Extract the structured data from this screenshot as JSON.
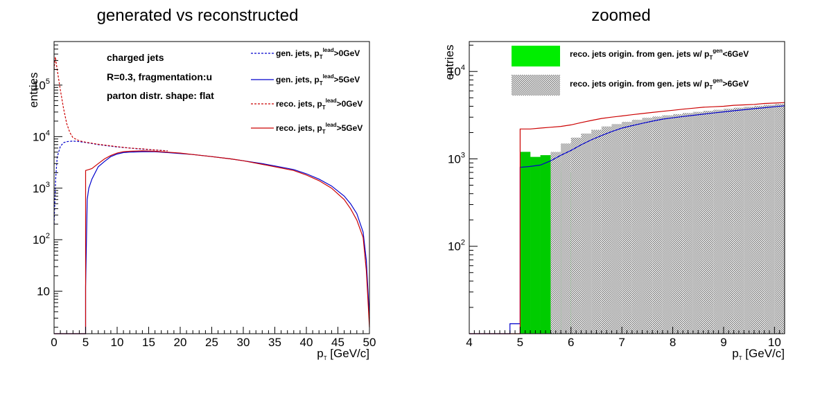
{
  "chart_data": [
    {
      "type": "line",
      "title": "generated vs reconstructed",
      "xlabel": "p_T [GeV/c]",
      "ylabel": "entries",
      "xlim": [
        0,
        50
      ],
      "ylim": [
        1.5,
        700000
      ],
      "yscale": "log",
      "grid": false,
      "legend_position": "top-right",
      "xticks": [
        "0",
        "5",
        "10",
        "15",
        "20",
        "25",
        "30",
        "35",
        "40",
        "45",
        "50"
      ],
      "yticks": [
        "10",
        "10^2",
        "10^3",
        "10^4",
        "10^5"
      ],
      "annotations": [
        "charged jets",
        "R=0.3, fragmentation:u",
        "parton distr. shape: flat"
      ],
      "series": [
        {
          "name": "gen. jets, p_T^lead>0GeV",
          "color": "#0000cc",
          "dash": true,
          "points": [
            [
              0,
              200
            ],
            [
              0.25,
              1500
            ],
            [
              0.5,
              4000
            ],
            [
              1,
              6500
            ],
            [
              1.5,
              7600
            ],
            [
              2,
              8000
            ],
            [
              3,
              8200
            ],
            [
              4,
              8000
            ],
            [
              5,
              7700
            ],
            [
              7,
              7000
            ],
            [
              10,
              6300
            ],
            [
              12,
              6000
            ],
            [
              14,
              5700
            ],
            [
              16,
              5500
            ],
            [
              18,
              5300
            ]
          ]
        },
        {
          "name": "gen. jets, p_T^lead>5GeV",
          "color": "#0000cc",
          "dash": false,
          "points": [
            [
              0,
              1.5
            ],
            [
              5,
              1.5
            ],
            [
              5,
              12
            ],
            [
              5.25,
              600
            ],
            [
              5.5,
              1000
            ],
            [
              6,
              1500
            ],
            [
              7,
              2600
            ],
            [
              8,
              3300
            ],
            [
              9,
              4100
            ],
            [
              10,
              4600
            ],
            [
              11,
              4900
            ],
            [
              12,
              5000
            ],
            [
              14,
              5100
            ],
            [
              16,
              5100
            ],
            [
              18,
              4900
            ],
            [
              20,
              4700
            ],
            [
              22,
              4500
            ],
            [
              25,
              4100
            ],
            [
              28,
              3700
            ],
            [
              30,
              3400
            ],
            [
              33,
              3000
            ],
            [
              35,
              2700
            ],
            [
              38,
              2300
            ],
            [
              40,
              1900
            ],
            [
              42,
              1500
            ],
            [
              44,
              1100
            ],
            [
              46,
              700
            ],
            [
              47,
              500
            ],
            [
              48,
              320
            ],
            [
              49,
              140
            ],
            [
              49.5,
              40
            ],
            [
              50,
              3
            ]
          ]
        },
        {
          "name": "reco. jets, p_T^lead>0GeV",
          "color": "#cc0000",
          "dash": true,
          "points": [
            [
              0,
              200000
            ],
            [
              0.2,
              350000
            ],
            [
              0.5,
              200000
            ],
            [
              1,
              80000
            ],
            [
              1.5,
              35000
            ],
            [
              2,
              18000
            ],
            [
              2.5,
              12000
            ],
            [
              3,
              9500
            ],
            [
              4,
              8300
            ],
            [
              5,
              7800
            ],
            [
              7,
              7100
            ],
            [
              10,
              6400
            ],
            [
              12,
              6000
            ],
            [
              14,
              5800
            ],
            [
              16,
              5500
            ],
            [
              18,
              5300
            ]
          ]
        },
        {
          "name": "reco. jets, p_T^lead>5GeV",
          "color": "#cc0000",
          "dash": false,
          "points": [
            [
              0,
              1.5
            ],
            [
              5,
              1.5
            ],
            [
              5,
              2200
            ],
            [
              5.5,
              2300
            ],
            [
              6,
              2400
            ],
            [
              7,
              3000
            ],
            [
              8,
              3700
            ],
            [
              9,
              4300
            ],
            [
              10,
              4800
            ],
            [
              11,
              5100
            ],
            [
              12,
              5200
            ],
            [
              14,
              5300
            ],
            [
              16,
              5200
            ],
            [
              18,
              5000
            ],
            [
              20,
              4800
            ],
            [
              22,
              4500
            ],
            [
              25,
              4100
            ],
            [
              28,
              3700
            ],
            [
              30,
              3400
            ],
            [
              33,
              2900
            ],
            [
              35,
              2600
            ],
            [
              38,
              2200
            ],
            [
              40,
              1800
            ],
            [
              42,
              1400
            ],
            [
              44,
              1000
            ],
            [
              46,
              600
            ],
            [
              47,
              400
            ],
            [
              48,
              240
            ],
            [
              49,
              110
            ],
            [
              49.5,
              25
            ],
            [
              50,
              2
            ]
          ]
        }
      ]
    },
    {
      "type": "bar",
      "title": "zoomed",
      "xlabel": "p_T [GeV/c]",
      "ylabel": "entries",
      "xlim": [
        4,
        10.2
      ],
      "ylim": [
        10,
        22000
      ],
      "yscale": "log",
      "grid": false,
      "legend_position": "top",
      "xticks": [
        "4",
        "5",
        "6",
        "7",
        "8",
        "9",
        "10"
      ],
      "yticks": [
        "10^2",
        "10^3",
        "10^4"
      ],
      "series": [
        {
          "name": "reco. jets origin. from gen. jets w/ p_T^gen<6GeV",
          "color": "#00dd00",
          "bin_width": 0.2,
          "bins": [
            [
              5.0,
              1200
            ],
            [
              5.2,
              1050
            ],
            [
              5.4,
              1100
            ],
            [
              5.6,
              900
            ],
            [
              5.8,
              700
            ]
          ]
        },
        {
          "name": "reco. jets origin. from gen. jets w/ p_T^gen>6GeV",
          "color": "#888888",
          "bin_width": 0.2,
          "bins": [
            [
              5.6,
              1200
            ],
            [
              5.8,
              1500
            ],
            [
              6.0,
              1750
            ],
            [
              6.2,
              1950
            ],
            [
              6.4,
              2150
            ],
            [
              6.6,
              2350
            ],
            [
              6.8,
              2500
            ],
            [
              7.0,
              2650
            ],
            [
              7.2,
              2800
            ],
            [
              7.4,
              2950
            ],
            [
              7.6,
              3050
            ],
            [
              7.8,
              3150
            ],
            [
              8.0,
              3250
            ],
            [
              8.2,
              3350
            ],
            [
              8.4,
              3450
            ],
            [
              8.6,
              3550
            ],
            [
              8.8,
              3650
            ],
            [
              9.0,
              3750
            ],
            [
              9.2,
              3850
            ],
            [
              9.4,
              3950
            ],
            [
              9.6,
              4050
            ],
            [
              9.8,
              4150
            ],
            [
              10.0,
              4250
            ]
          ]
        },
        {
          "name": "",
          "color": "#0000cc",
          "style": "line",
          "points": [
            [
              4.0,
              10
            ],
            [
              4.8,
              10
            ],
            [
              4.8,
              13
            ],
            [
              5.0,
              13
            ],
            [
              5.0,
              800
            ],
            [
              5.2,
              820
            ],
            [
              5.4,
              850
            ],
            [
              5.6,
              950
            ],
            [
              5.8,
              1100
            ],
            [
              6.0,
              1250
            ],
            [
              6.2,
              1450
            ],
            [
              6.4,
              1650
            ],
            [
              6.6,
              1850
            ],
            [
              6.8,
              2050
            ],
            [
              7.0,
              2250
            ],
            [
              7.2,
              2400
            ],
            [
              7.4,
              2550
            ],
            [
              7.6,
              2700
            ],
            [
              7.8,
              2850
            ],
            [
              8.0,
              2950
            ],
            [
              8.2,
              3050
            ],
            [
              8.4,
              3150
            ],
            [
              8.6,
              3250
            ],
            [
              8.8,
              3350
            ],
            [
              9.0,
              3450
            ],
            [
              9.2,
              3550
            ],
            [
              9.4,
              3650
            ],
            [
              9.6,
              3750
            ],
            [
              9.8,
              3850
            ],
            [
              10.0,
              3950
            ],
            [
              10.2,
              4050
            ]
          ]
        },
        {
          "name": "",
          "color": "#cc0000",
          "style": "line",
          "points": [
            [
              4.0,
              10
            ],
            [
              5.0,
              10
            ],
            [
              5.0,
              2200
            ],
            [
              5.2,
              2200
            ],
            [
              5.4,
              2250
            ],
            [
              5.6,
              2300
            ],
            [
              5.8,
              2350
            ],
            [
              6.0,
              2450
            ],
            [
              6.2,
              2600
            ],
            [
              6.4,
              2750
            ],
            [
              6.6,
              2900
            ],
            [
              6.8,
              3000
            ],
            [
              7.0,
              3100
            ],
            [
              7.2,
              3200
            ],
            [
              7.4,
              3300
            ],
            [
              7.6,
              3400
            ],
            [
              7.8,
              3500
            ],
            [
              8.0,
              3600
            ],
            [
              8.2,
              3700
            ],
            [
              8.4,
              3800
            ],
            [
              8.6,
              3900
            ],
            [
              8.8,
              3950
            ],
            [
              9.0,
              4000
            ],
            [
              9.2,
              4100
            ],
            [
              9.4,
              4150
            ],
            [
              9.6,
              4200
            ],
            [
              9.8,
              4300
            ],
            [
              10.0,
              4350
            ],
            [
              10.2,
              4400
            ]
          ]
        }
      ]
    }
  ]
}
